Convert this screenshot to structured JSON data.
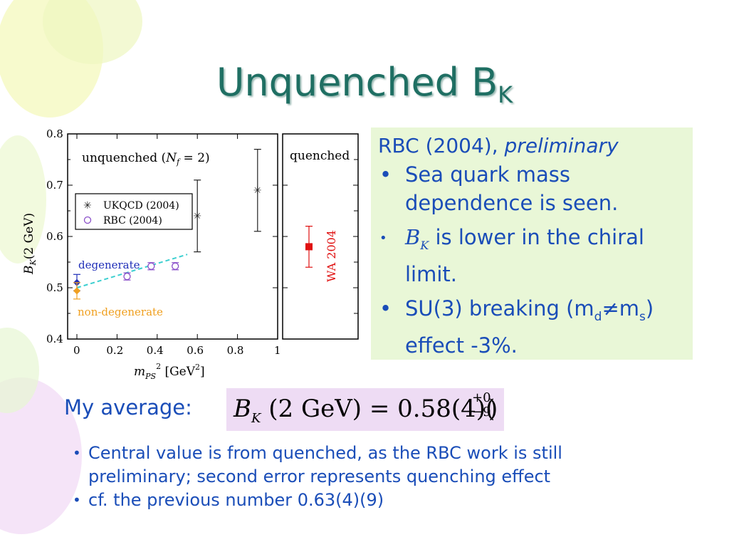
{
  "slide": {
    "title_main": "Unquenched B",
    "title_sub": "K"
  },
  "chart_data": [
    {
      "type": "scatter",
      "panel": "unquenched",
      "annotation": "unquenched (Nf = 2)",
      "xlabel": "m_PS^2 [GeV^2]",
      "ylabel": "B_K(2 GeV)",
      "xlim": [
        0,
        1
      ],
      "ylim": [
        0.4,
        0.8
      ],
      "x_ticks": [
        "0",
        "0.2",
        "0.4",
        "0.6",
        "0.8",
        "1"
      ],
      "y_ticks": [
        "0.4",
        "0.5",
        "0.6",
        "0.7",
        "0.8"
      ],
      "legend": [
        "UKQCD (2004)",
        "RBC (2004)"
      ],
      "legend_position": "upper-left",
      "series": [
        {
          "name": "UKQCD (2004)",
          "marker": "star",
          "color": "#222222",
          "points": [
            {
              "x": 0.6,
              "y": 0.64,
              "err": 0.07
            },
            {
              "x": 0.9,
              "y": 0.69,
              "err": 0.08
            }
          ]
        },
        {
          "name": "RBC (2004)",
          "marker": "open-circle",
          "color": "#8a4fc9",
          "points": [
            {
              "x": 0.25,
              "y": 0.522,
              "err": 0.007
            },
            {
              "x": 0.37,
              "y": 0.542,
              "err": 0.007
            },
            {
              "x": 0.49,
              "y": 0.542,
              "err": 0.007
            }
          ]
        },
        {
          "name": "degenerate",
          "marker": "diamond",
          "color": "#1f2eb8",
          "points": [
            {
              "x": 0.0,
              "y": 0.51,
              "err": 0.016
            }
          ]
        },
        {
          "name": "non-degenerate",
          "marker": "diamond",
          "color": "#f0a020",
          "points": [
            {
              "x": 0.0,
              "y": 0.494,
              "err": 0.016
            }
          ]
        }
      ],
      "fit_line": {
        "x": [
          0.0,
          0.55
        ],
        "y": [
          0.5,
          0.565
        ],
        "color": "#3ccfd0"
      },
      "labels": {
        "degenerate": "degenerate",
        "non_degenerate": "non-degenerate"
      }
    },
    {
      "type": "scatter",
      "panel": "quenched",
      "annotation": "quenched",
      "series": [
        {
          "name": "WA 2004",
          "marker": "square",
          "color": "#e01010",
          "points": [
            {
              "y": 0.58,
              "err": 0.04
            }
          ]
        }
      ],
      "label": "WA 2004"
    }
  ],
  "rbc_box": {
    "heading_plain": "RBC (2004), ",
    "heading_italic": "preliminary",
    "bullet1": "Sea quark mass dependence is seen.",
    "bullet2_sym": "B",
    "bullet2_sub": "K",
    "bullet2_rest": " is lower in the chiral limit.",
    "bullet3_a": "SU(3) breaking (m",
    "bullet3_sub1": "d",
    "bullet3_b": "≠m",
    "bullet3_sub2": "s",
    "bullet3_c": ") effect -3%."
  },
  "average": {
    "label": "My average:",
    "formula_main": "B_K (2 GeV) = 0.58(4)(",
    "formula_upper": "+0",
    "formula_lower": "−9",
    "formula_close": ")"
  },
  "notes": [
    "Central value is from quenched, as the RBC work is still preliminary; second error represents quenching effect",
    "cf. the previous number 0.63(4)(9)"
  ],
  "colors": {
    "title": "#1f6f63",
    "text_blue": "#1a4db8",
    "box_green": "#e9f7d7",
    "box_purple": "#eedcf4"
  }
}
